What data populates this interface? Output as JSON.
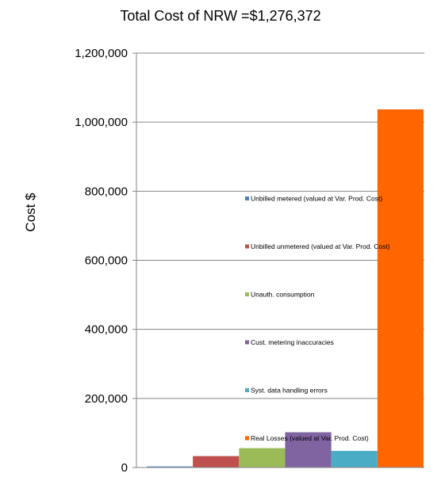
{
  "chart_data": {
    "type": "bar",
    "title": "Total Cost of NRW =$1,276,372",
    "xlabel": "",
    "ylabel": "Cost $",
    "ylim": [
      0,
      1200000
    ],
    "yticks": [
      {
        "value": 0,
        "label": "0"
      },
      {
        "value": 200000,
        "label": "200,000"
      },
      {
        "value": 400000,
        "label": "400,000"
      },
      {
        "value": 600000,
        "label": "600,000"
      },
      {
        "value": 800000,
        "label": "800,000"
      },
      {
        "value": 1000000,
        "label": "1,000,000"
      },
      {
        "value": 1200000,
        "label": "1,200,000"
      }
    ],
    "grid": true,
    "legend_position": "center",
    "series": [
      {
        "name": "Unbilled metered (valued at Var. Prod. Cost)",
        "value": 3000,
        "color": "#4f81bd"
      },
      {
        "name": "Unbilled unmetered (valued at Var. Prod. Cost)",
        "value": 33000,
        "color": "#c0504d"
      },
      {
        "name": "Unauth. consumption",
        "value": 56000,
        "color": "#9bbb59"
      },
      {
        "name": "Cust. metering inaccuracies",
        "value": 102000,
        "color": "#8064a2"
      },
      {
        "name": "Syst. data handling errors",
        "value": 48000,
        "color": "#4bacc6"
      },
      {
        "name": "Real Losses (valued at Var. Prod. Cost)",
        "value": 1037000,
        "color": "#ff6600"
      }
    ]
  }
}
